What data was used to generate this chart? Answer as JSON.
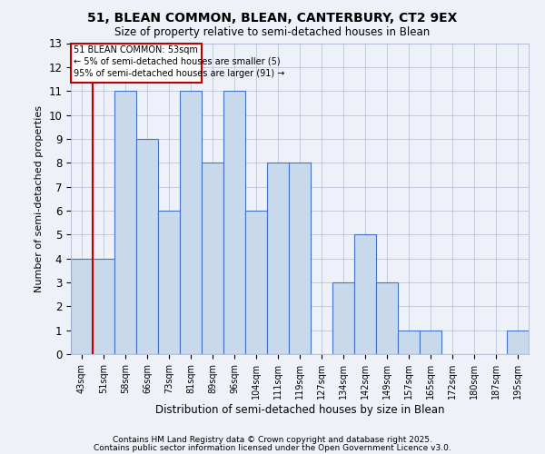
{
  "title1": "51, BLEAN COMMON, BLEAN, CANTERBURY, CT2 9EX",
  "title2": "Size of property relative to semi-detached houses in Blean",
  "xlabel": "Distribution of semi-detached houses by size in Blean",
  "ylabel": "Number of semi-detached properties",
  "categories": [
    "43sqm",
    "51sqm",
    "58sqm",
    "66sqm",
    "73sqm",
    "81sqm",
    "89sqm",
    "96sqm",
    "104sqm",
    "111sqm",
    "119sqm",
    "127sqm",
    "134sqm",
    "142sqm",
    "149sqm",
    "157sqm",
    "165sqm",
    "172sqm",
    "180sqm",
    "187sqm",
    "195sqm"
  ],
  "values": [
    4,
    4,
    11,
    9,
    6,
    11,
    8,
    11,
    6,
    8,
    8,
    0,
    3,
    5,
    3,
    1,
    1,
    0,
    0,
    0,
    1
  ],
  "bar_color": "#c9d9ec",
  "bar_edge_color": "#4472c4",
  "highlight_index": 1,
  "highlight_color": "#c00000",
  "property_label": "51 BLEAN COMMON: 53sqm",
  "annotation_line1": "← 5% of semi-detached houses are smaller (5)",
  "annotation_line2": "95% of semi-detached houses are larger (91) →",
  "ylim": [
    0,
    13
  ],
  "yticks": [
    0,
    1,
    2,
    3,
    4,
    5,
    6,
    7,
    8,
    9,
    10,
    11,
    12,
    13
  ],
  "footer1": "Contains HM Land Registry data © Crown copyright and database right 2025.",
  "footer2": "Contains public sector information licensed under the Open Government Licence v3.0.",
  "background_color": "#eef2f8",
  "plot_background": "#eef2f8",
  "grid_color": "#b0b8d0"
}
